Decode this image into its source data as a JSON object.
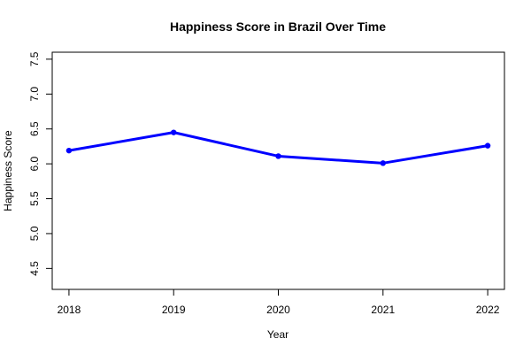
{
  "chart_data": {
    "type": "line",
    "title": "Happiness Score in Brazil Over Time",
    "xlabel": "Year",
    "ylabel": "Happiness Score",
    "x": [
      2018,
      2019,
      2020,
      2021,
      2022
    ],
    "x_tick_labels": [
      "2018",
      "2019",
      "2020",
      "2021",
      "2022"
    ],
    "y_ticks": [
      4.5,
      5.0,
      5.5,
      6.0,
      6.5,
      7.0,
      7.5
    ],
    "y_tick_labels": [
      "4.5",
      "5.0",
      "5.5",
      "6.0",
      "6.5",
      "7.0",
      "7.5"
    ],
    "xlim": [
      2017.84,
      2022.16
    ],
    "ylim": [
      4.2,
      7.6
    ],
    "series": [
      {
        "values": [
          6.19,
          6.45,
          6.11,
          6.01,
          6.26
        ],
        "color": "#0000ff"
      }
    ],
    "grid": false,
    "markers": true
  }
}
